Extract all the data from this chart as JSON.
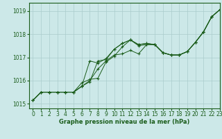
{
  "xlabel": "Graphe pression niveau de la mer (hPa)",
  "xlim": [
    -0.5,
    23
  ],
  "ylim": [
    1014.8,
    1019.35
  ],
  "yticks": [
    1015,
    1016,
    1017,
    1018,
    1019
  ],
  "xticks": [
    0,
    1,
    2,
    3,
    4,
    5,
    6,
    7,
    8,
    9,
    10,
    11,
    12,
    13,
    14,
    15,
    16,
    17,
    18,
    19,
    20,
    21,
    22,
    23
  ],
  "bg_color": "#cce8e8",
  "grid_color": "#aacccc",
  "line_color": "#1a5c1a",
  "series": [
    [
      1015.15,
      1015.5,
      1015.5,
      1015.5,
      1015.5,
      1015.5,
      1015.9,
      1016.05,
      1016.1,
      1016.8,
      1017.05,
      1017.45,
      1017.75,
      1017.5,
      1017.55,
      1017.55,
      1017.2,
      1017.1,
      1017.1,
      1017.25,
      1017.65,
      1018.1,
      1018.75,
      1019.05
    ],
    [
      1015.15,
      1015.5,
      1015.5,
      1015.5,
      1015.5,
      1015.5,
      1015.75,
      1015.95,
      1016.85,
      1016.9,
      1017.35,
      1017.6,
      1017.75,
      1017.55,
      1017.6,
      1017.55,
      1017.2,
      1017.1,
      1017.1,
      1017.25,
      1017.65,
      1018.1,
      1018.75,
      1019.05
    ],
    [
      1015.15,
      1015.5,
      1015.5,
      1015.5,
      1015.5,
      1015.5,
      1015.75,
      1016.85,
      1016.75,
      1016.95,
      1017.35,
      1017.6,
      1017.75,
      1017.55,
      1017.6,
      1017.55,
      1017.2,
      1017.1,
      1017.1,
      1017.25,
      1017.65,
      1018.1,
      1018.75,
      1019.05
    ],
    [
      1015.15,
      1015.5,
      1015.5,
      1015.5,
      1015.5,
      1015.5,
      1015.75,
      1016.0,
      1016.5,
      1016.85,
      1017.1,
      1017.15,
      1017.3,
      1017.15,
      1017.55,
      1017.55,
      1017.2,
      1017.1,
      1017.1,
      1017.25,
      1017.65,
      1018.1,
      1018.75,
      1019.05
    ]
  ]
}
